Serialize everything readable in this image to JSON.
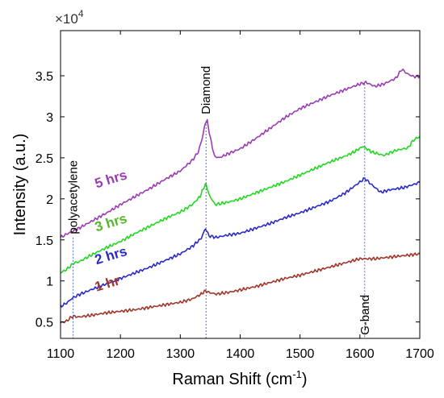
{
  "chart_data": {
    "type": "line",
    "title": "",
    "xlabel": "Raman Shift (cm",
    "xlabel_sup": "-1",
    "xlabel_close": ")",
    "ylabel": "Intensity (a.u.)",
    "y_multiplier_base": "×10",
    "y_multiplier_exp": "4",
    "xlim": [
      1100,
      1700
    ],
    "ylim": [
      0.3,
      4.05
    ],
    "xticks": [
      1100,
      1200,
      1300,
      1400,
      1500,
      1600,
      1700
    ],
    "xtick_labels": [
      "1100",
      "1200",
      "1300",
      "1400",
      "1500",
      "1600",
      "1700"
    ],
    "yticks": [
      0.5,
      1,
      1.5,
      2,
      2.5,
      3,
      3.5
    ],
    "ytick_labels": [
      "0.5",
      "1",
      "1.5",
      "2",
      "2.5",
      "3",
      "3.5"
    ],
    "grid": false,
    "series": [
      {
        "name": "1 hr",
        "color": "#a0362a",
        "x": [
          1100,
          1110,
          1118,
          1122,
          1130,
          1150,
          1175,
          1200,
          1225,
          1250,
          1275,
          1300,
          1320,
          1335,
          1342,
          1348,
          1360,
          1380,
          1400,
          1425,
          1450,
          1475,
          1500,
          1525,
          1550,
          1575,
          1600,
          1625,
          1650,
          1675,
          1700
        ],
        "y": [
          0.49,
          0.51,
          0.56,
          0.57,
          0.56,
          0.58,
          0.61,
          0.63,
          0.65,
          0.68,
          0.71,
          0.74,
          0.78,
          0.84,
          0.88,
          0.86,
          0.84,
          0.86,
          0.89,
          0.93,
          0.98,
          1.03,
          1.07,
          1.12,
          1.17,
          1.22,
          1.27,
          1.27,
          1.29,
          1.31,
          1.33
        ]
      },
      {
        "name": "2 hrs",
        "color": "#2a2ac8",
        "x": [
          1100,
          1110,
          1118,
          1122,
          1130,
          1150,
          1175,
          1200,
          1225,
          1250,
          1275,
          1300,
          1320,
          1335,
          1342,
          1348,
          1360,
          1380,
          1400,
          1425,
          1450,
          1475,
          1500,
          1525,
          1550,
          1575,
          1590,
          1608,
          1620,
          1635,
          1650,
          1675,
          1700
        ],
        "y": [
          0.69,
          0.73,
          0.78,
          0.8,
          0.83,
          0.89,
          0.96,
          1.03,
          1.1,
          1.17,
          1.25,
          1.33,
          1.42,
          1.52,
          1.64,
          1.55,
          1.53,
          1.56,
          1.58,
          1.64,
          1.7,
          1.77,
          1.83,
          1.9,
          1.97,
          2.07,
          2.15,
          2.25,
          2.17,
          2.08,
          2.11,
          2.14,
          2.2
        ]
      },
      {
        "name": "3 hrs",
        "color": "#22d822",
        "x": [
          1100,
          1110,
          1118,
          1122,
          1130,
          1150,
          1175,
          1200,
          1225,
          1250,
          1275,
          1300,
          1320,
          1333,
          1340,
          1343,
          1348,
          1358,
          1380,
          1400,
          1425,
          1450,
          1475,
          1500,
          1525,
          1550,
          1575,
          1590,
          1605,
          1620,
          1640,
          1660,
          1680,
          1690,
          1700
        ],
        "y": [
          1.1,
          1.14,
          1.19,
          1.22,
          1.23,
          1.31,
          1.4,
          1.48,
          1.58,
          1.67,
          1.76,
          1.84,
          1.93,
          2.03,
          2.15,
          2.18,
          2.05,
          1.93,
          1.96,
          2.0,
          2.07,
          2.14,
          2.21,
          2.29,
          2.37,
          2.45,
          2.52,
          2.57,
          2.64,
          2.57,
          2.53,
          2.59,
          2.62,
          2.72,
          2.76
        ]
      },
      {
        "name": "5 hrs",
        "color": "#9a3db0",
        "x": [
          1100,
          1110,
          1118,
          1125,
          1150,
          1175,
          1200,
          1225,
          1250,
          1275,
          1300,
          1320,
          1330,
          1337,
          1342,
          1345,
          1350,
          1357,
          1365,
          1380,
          1400,
          1425,
          1450,
          1475,
          1500,
          1525,
          1550,
          1575,
          1600,
          1610,
          1625,
          1640,
          1660,
          1670,
          1680,
          1690,
          1700
        ],
        "y": [
          1.53,
          1.57,
          1.6,
          1.62,
          1.72,
          1.82,
          1.93,
          2.03,
          2.13,
          2.24,
          2.34,
          2.47,
          2.57,
          2.75,
          2.93,
          2.95,
          2.75,
          2.52,
          2.5,
          2.55,
          2.61,
          2.73,
          2.86,
          2.99,
          3.1,
          3.18,
          3.26,
          3.33,
          3.4,
          3.42,
          3.37,
          3.4,
          3.47,
          3.58,
          3.52,
          3.49,
          3.49
        ]
      }
    ],
    "curve_labels": [
      {
        "text": "1 hr",
        "color": "#a0362a",
        "x": 1160,
        "y": 0.87
      },
      {
        "text": "2 hrs",
        "color": "#2a2ac8",
        "x": 1160,
        "y": 1.2
      },
      {
        "text": "3 hrs",
        "color": "#55b82a",
        "x": 1160,
        "y": 1.6
      },
      {
        "text": "5 hrs",
        "color": "#9a3db0",
        "x": 1160,
        "y": 2.13
      }
    ],
    "annotations": [
      {
        "text": "polyacetylene",
        "x": 1121,
        "y_top": 1.53,
        "y_text": 1.57,
        "rotated": true
      },
      {
        "text": "Diamond",
        "x": 1343,
        "y_top": 2.95,
        "y_text": 3.03,
        "rotated": true
      },
      {
        "text": "G-band",
        "x": 1608,
        "y_top": 3.4,
        "y_text": 0.34,
        "rotated": true
      }
    ]
  }
}
